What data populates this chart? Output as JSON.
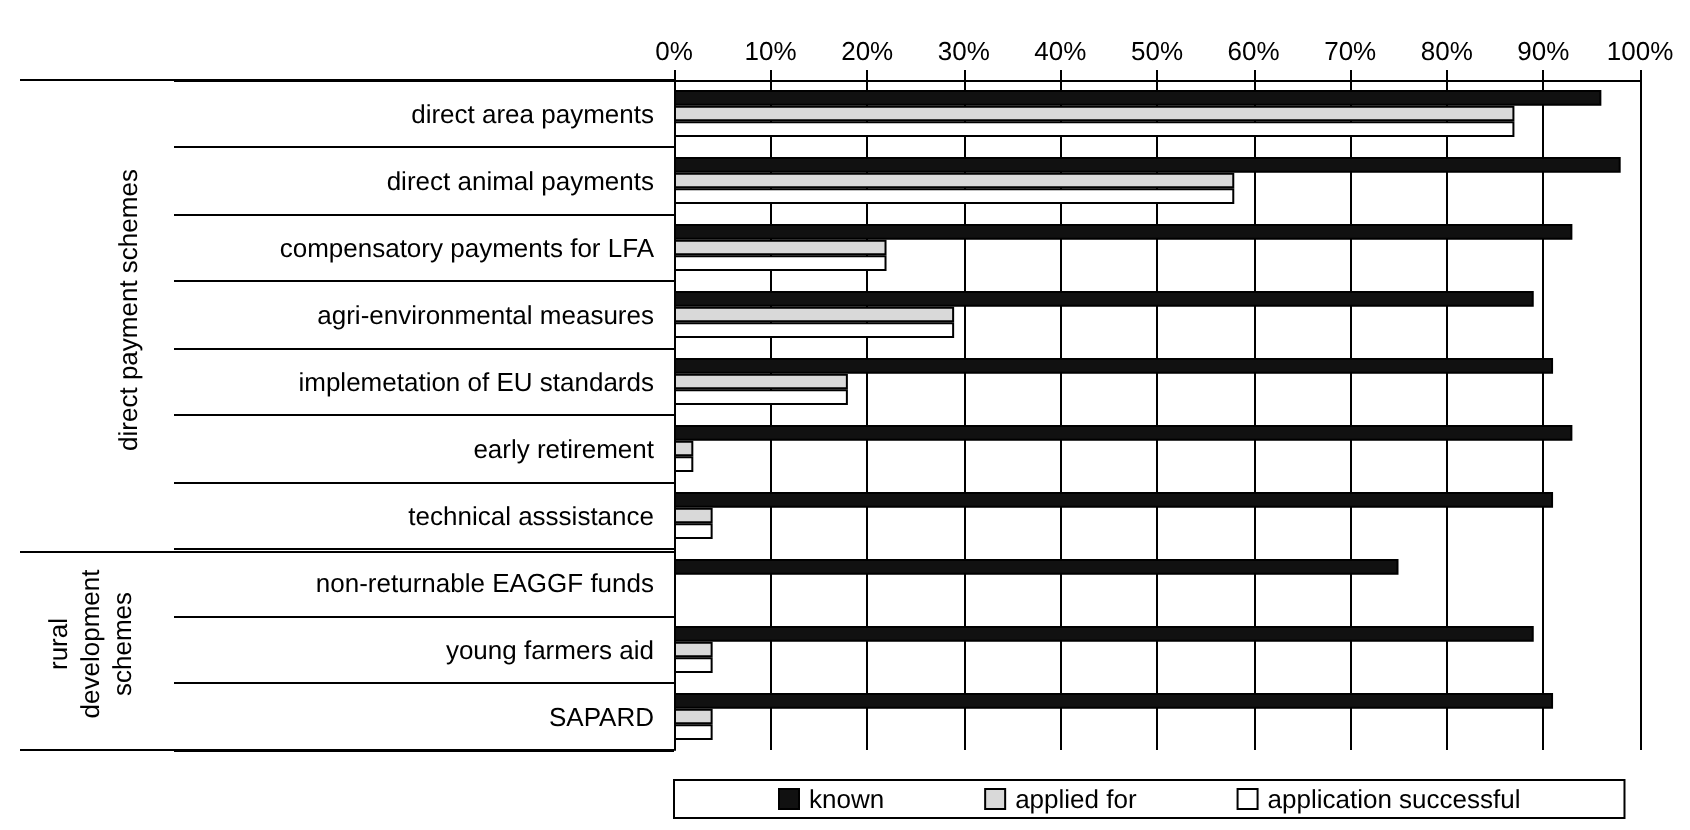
{
  "chart_data": {
    "type": "bar",
    "orientation": "horizontal",
    "categories": [
      "direct area payments",
      "direct animal payments",
      "compensatory payments for LFA",
      "agri-environmental measures",
      "implemetation of EU standards",
      "early retirement",
      "technical asssistance",
      "non-returnable EAGGF funds",
      "young farmers aid",
      "SAPARD"
    ],
    "series": [
      {
        "name": "known",
        "color": "#111111",
        "values": [
          96,
          98,
          93,
          89,
          91,
          93,
          91,
          75,
          89,
          91
        ]
      },
      {
        "name": "applied for",
        "color": "#d9d9d9",
        "values": [
          87,
          58,
          22,
          29,
          18,
          2,
          4,
          0,
          4,
          4
        ]
      },
      {
        "name": "application successful",
        "color": "#ffffff",
        "values": [
          87,
          58,
          22,
          29,
          18,
          2,
          4,
          0,
          4,
          4
        ]
      }
    ],
    "xlim": [
      0,
      100
    ],
    "xticks": [
      {
        "value": 0,
        "label": "0%"
      },
      {
        "value": 10,
        "label": "10%"
      },
      {
        "value": 20,
        "label": "20%"
      },
      {
        "value": 30,
        "label": "30%"
      },
      {
        "value": 40,
        "label": "40%"
      },
      {
        "value": 50,
        "label": "50%"
      },
      {
        "value": 60,
        "label": "60%"
      },
      {
        "value": 70,
        "label": "70%"
      },
      {
        "value": 80,
        "label": "80%"
      },
      {
        "value": 90,
        "label": "90%"
      },
      {
        "value": 100,
        "label": "100%"
      }
    ],
    "annotations": [
      "direct payment schemes",
      "rural\ndevelopment\nschemes"
    ],
    "grid": "x",
    "legend": "bottom"
  }
}
